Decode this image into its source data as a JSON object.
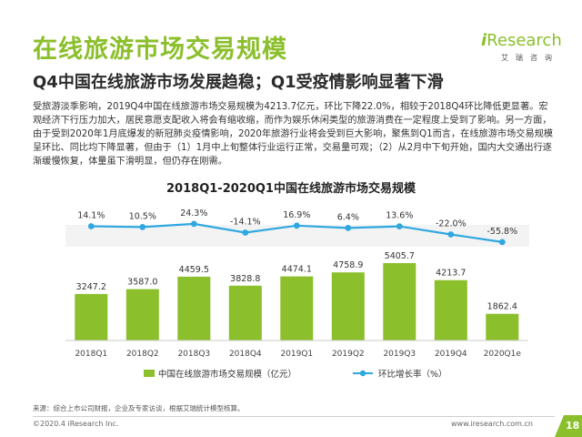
{
  "header": {
    "title": "在线旅游市场交易规模",
    "subtitle": "Q4中国在线旅游市场发展趋稳；Q1受疫情影响显著下滑"
  },
  "logo": {
    "mark": "i",
    "word": "Research",
    "sub": "艾瑞咨询",
    "color": "#8bbf2b"
  },
  "paragraph": "受旅游淡季影响，2019Q4中国在线旅游市场交易规模为4213.7亿元，环比下降22.0%，相较于2018Q4环比降低更显著。宏观经济下行压力加大，居民意愿支配收入将会有缩收缩，而作为娱乐休闲类型的旅游消费在一定程度上受到了影响。另一方面，由于受到2020年1月底爆发的新冠肺炎疫情影响，2020年旅游行业将会受到巨大影响，聚焦到Q1而言，在线旅游市场交易规模呈环比、同比均下降显著，但由于（1）1月中上旬整体行业运行正常，交易量可观；（2）从2月中下旬开始，国内大交通出行逐渐缓慢恢复，体量虽下滑明显，但仍存在刚需。",
  "chart_data": {
    "type": "bar",
    "title": "2018Q1-2020Q1中国在线旅游市场交易规模",
    "categories": [
      "2018Q1",
      "2018Q2",
      "2018Q3",
      "2018Q4",
      "2019Q1",
      "2019Q2",
      "2019Q3",
      "2019Q4",
      "2020Q1e"
    ],
    "series": [
      {
        "name": "中国在线旅游市场交易规模（亿元）",
        "kind": "bar",
        "color": "#8bbf2b",
        "values": [
          3247.2,
          3587.0,
          4459.5,
          3828.8,
          4474.1,
          4758.9,
          5405.7,
          4213.7,
          1862.4
        ],
        "labels": [
          "3247.2",
          "3587.0",
          "4459.5",
          "3828.8",
          "4474.1",
          "4758.9",
          "5405.7",
          "4213.7",
          "1862.4"
        ]
      },
      {
        "name": "环比增长率（%）",
        "kind": "line",
        "color": "#2fa8e0",
        "values": [
          14.1,
          10.5,
          24.3,
          -14.1,
          16.9,
          6.4,
          13.6,
          -22.0,
          -55.8
        ],
        "labels": [
          "14.1%",
          "10.5%",
          "24.3%",
          "-14.1%",
          "16.9%",
          "6.4%",
          "13.6%",
          "-22.0%",
          "-55.8%"
        ]
      }
    ],
    "legend_position": "bottom",
    "grid": false
  },
  "source": "来源：综合上市公司财报，企业及专家访谈，根据艾瑞统计模型核算。",
  "footer": {
    "copyright": "©2020.4 iResearch Inc.",
    "website": "www.iresearch.com.cn",
    "page": "18",
    "tab_color": "#8bbf2b"
  }
}
